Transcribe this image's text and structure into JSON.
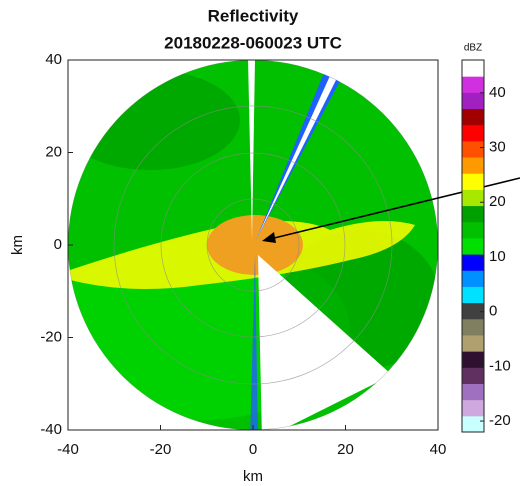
{
  "chart_data": {
    "type": "ppi",
    "title": "Reflectivity",
    "subtitle": "20180228-060023 UTC",
    "xlabel": "km",
    "ylabel": "km",
    "xlim": [
      -40,
      40
    ],
    "ylim": [
      -40,
      40
    ],
    "xticks": [
      -40,
      -20,
      0,
      20,
      40
    ],
    "yticks": [
      -40,
      -20,
      0,
      20,
      40
    ],
    "colorbar": {
      "label": "dBZ",
      "lim": [
        -22,
        46
      ],
      "ticks": [
        -20,
        -10,
        0,
        10,
        20,
        30,
        40
      ],
      "colors": [
        "#c8ffff",
        "#d0a8e0",
        "#a070c0",
        "#603060",
        "#301030",
        "#b0a070",
        "#808060",
        "#404040",
        "#00e0ff",
        "#0090ff",
        "#0000ff",
        "#00e000",
        "#00c000",
        "#00a000",
        "#a8e800",
        "#ffff00",
        "#ff9900",
        "#ff5000",
        "#ff0000",
        "#a00000",
        "#a020c0",
        "#d030e0",
        "#ffffff"
      ]
    }
  }
}
